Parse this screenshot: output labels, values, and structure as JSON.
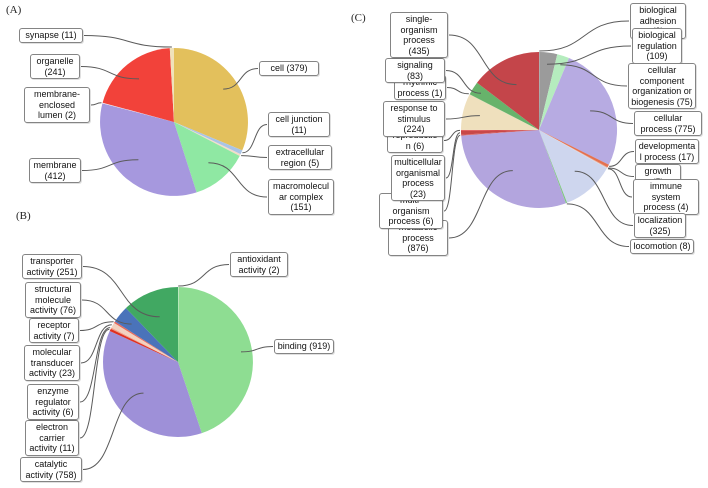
{
  "figure": {
    "background": "#ffffff",
    "leader_color": "#5a5a5a",
    "callout_style": "boxed-labels-with-curved-leader-lines"
  },
  "chart_data": [
    {
      "type": "pie",
      "panel": "(A)",
      "order": "clockwise-from-top",
      "legend_position": "callout-boxes",
      "label_format": "{label} ({value})",
      "total": 1212,
      "slices": [
        {
          "label": "cell",
          "value": 379,
          "color": "#e3c05c"
        },
        {
          "label": "cell junction",
          "value": 11,
          "color": "#aac4e6"
        },
        {
          "label": "extracellular region",
          "value": 5,
          "color": "#f5dcc8"
        },
        {
          "label": "macromolecular complex",
          "value": 151,
          "color": "#8fe8a3"
        },
        {
          "label": "membrane",
          "value": 412,
          "color": "#a698de"
        },
        {
          "label": "membrane-enclosed lumen",
          "value": 2,
          "color": "#f0eff5"
        },
        {
          "label": "organelle",
          "value": 241,
          "color": "#f2423a"
        },
        {
          "label": "synapse",
          "value": 11,
          "color": "#f0e2ba"
        }
      ]
    },
    {
      "type": "pie",
      "panel": "(B)",
      "order": "clockwise-from-top",
      "legend_position": "callout-boxes",
      "label_format": "{label} ({value})",
      "total": 2053,
      "slices": [
        {
          "label": "antioxidant activity",
          "value": 2,
          "color": "#f2f2f2"
        },
        {
          "label": "binding",
          "value": 919,
          "color": "#8edd92"
        },
        {
          "label": "catalytic activity",
          "value": 758,
          "color": "#9e90d8"
        },
        {
          "label": "electron carrier activity",
          "value": 11,
          "color": "#e03020"
        },
        {
          "label": "enzyme regulator activity",
          "value": 6,
          "color": "#f0a088"
        },
        {
          "label": "molecular transducer activity",
          "value": 23,
          "color": "#f2d2c0"
        },
        {
          "label": "receptor activity",
          "value": 7,
          "color": "#e86858"
        },
        {
          "label": "structural molecule activity",
          "value": 76,
          "color": "#4a73ba"
        },
        {
          "label": "transporter activity",
          "value": 251,
          "color": "#41a862"
        }
      ]
    },
    {
      "type": "pie",
      "panel": "(C)",
      "order": "clockwise-from-top",
      "legend_position": "callout-boxes",
      "label_format": "{label} ({value})",
      "total": 2975,
      "slices": [
        {
          "label": "biological adhesion",
          "value": 3,
          "color": "#c0c0c0"
        },
        {
          "label": "biological regulation",
          "value": 109,
          "color": "#9b9b9b"
        },
        {
          "label": "cellular component organization or biogenesis",
          "value": 75,
          "color": "#b5ecbe"
        },
        {
          "label": "cellular process",
          "value": 775,
          "color": "#b7abe2"
        },
        {
          "label": "developmental process",
          "value": 17,
          "color": "#e4714f"
        },
        {
          "label": "growth",
          "value": 5,
          "color": "#e89a80"
        },
        {
          "label": "immune system process",
          "value": 4,
          "color": "#d8d8e0"
        },
        {
          "label": "localization",
          "value": 325,
          "color": "#ced6ee"
        },
        {
          "label": "locomotion",
          "value": 8,
          "color": "#7cc87c"
        },
        {
          "label": "metabolic process",
          "value": 876,
          "color": "#b3a5de"
        },
        {
          "label": "multi-organism process",
          "value": 6,
          "color": "#d86060"
        },
        {
          "label": "multicellular organismal process",
          "value": 23,
          "color": "#c84848"
        },
        {
          "label": "reproduction",
          "value": 6,
          "color": "#e05050"
        },
        {
          "label": "response to stimulus",
          "value": 224,
          "color": "#efe0bd"
        },
        {
          "label": "rhythmic process",
          "value": 1,
          "color": "#88c888"
        },
        {
          "label": "signaling",
          "value": 83,
          "color": "#67b36b"
        },
        {
          "label": "single-organism process",
          "value": 435,
          "color": "#c4454a"
        }
      ]
    }
  ]
}
